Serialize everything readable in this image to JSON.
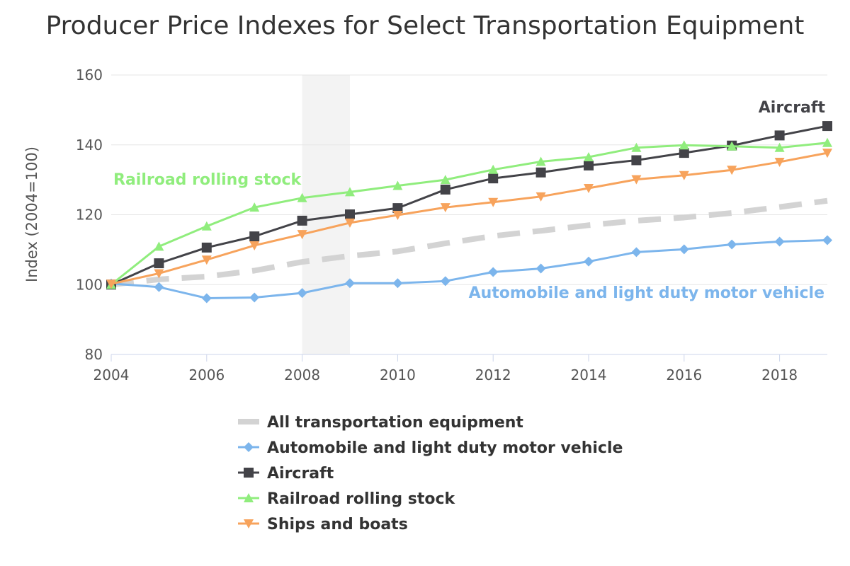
{
  "chart_data": {
    "type": "line",
    "title": "Producer Price Indexes for Select Transportation Equipment",
    "xlabel": "",
    "ylabel": "Index (2004=100)",
    "xlim": [
      2004,
      2019
    ],
    "ylim": [
      80,
      160
    ],
    "x_ticks": [
      2004,
      2006,
      2008,
      2010,
      2012,
      2014,
      2016,
      2018
    ],
    "y_ticks": [
      80,
      100,
      120,
      140,
      160
    ],
    "grid": "horizontal",
    "recession_band": [
      2008,
      2009
    ],
    "x": [
      2004,
      2005,
      2006,
      2007,
      2008,
      2009,
      2010,
      2011,
      2012,
      2013,
      2014,
      2015,
      2016,
      2017,
      2018,
      2019
    ],
    "series": [
      {
        "name": "All transportation equipment",
        "color": "#d3d3d3",
        "marker": "none",
        "dashed": true,
        "values": [
          100,
          101.5,
          102.3,
          104.0,
          106.5,
          108.2,
          109.5,
          111.8,
          113.9,
          115.4,
          117.0,
          118.3,
          119.2,
          120.5,
          122.2,
          124.0
        ]
      },
      {
        "name": "Automobile and light duty motor vehicle",
        "color": "#7cb5ec",
        "marker": "diamond",
        "dashed": false,
        "values": [
          100.3,
          99.3,
          96.1,
          96.3,
          97.6,
          100.4,
          100.4,
          101.0,
          103.6,
          104.6,
          106.6,
          109.3,
          110.1,
          111.5,
          112.3,
          112.7
        ]
      },
      {
        "name": "Aircraft",
        "color": "#434348",
        "marker": "square",
        "dashed": false,
        "values": [
          100.0,
          106.1,
          110.6,
          113.8,
          118.3,
          120.1,
          121.9,
          127.2,
          130.4,
          132.1,
          134.1,
          135.6,
          137.7,
          139.8,
          142.7,
          145.4
        ]
      },
      {
        "name": "Railroad rolling stock",
        "color": "#90ed7d",
        "marker": "triangle",
        "dashed": false,
        "values": [
          100.0,
          110.9,
          116.7,
          122.1,
          124.8,
          126.5,
          128.3,
          130.0,
          132.9,
          135.2,
          136.5,
          139.2,
          139.9,
          139.6,
          139.2,
          140.6
        ]
      },
      {
        "name": "Ships and boats",
        "color": "#f7a35c",
        "marker": "triangle-down",
        "dashed": false,
        "values": [
          100.2,
          103.2,
          107.1,
          111.2,
          114.4,
          117.7,
          119.9,
          122.1,
          123.6,
          125.2,
          127.6,
          130.1,
          131.3,
          132.8,
          135.1,
          137.7
        ]
      }
    ],
    "annotations": [
      {
        "text": "Aircraft",
        "color": "#434348",
        "series": "Aircraft"
      },
      {
        "text": "Railroad rolling stock",
        "color": "#90ed7d",
        "series": "Railroad rolling stock"
      },
      {
        "text": "Automobile and light duty motor vehicle",
        "color": "#7cb5ec",
        "series": "Automobile and light duty motor vehicle"
      }
    ],
    "legend": {
      "position": "bottom",
      "items": [
        "All transportation equipment",
        "Automobile and light duty motor vehicle",
        "Aircraft",
        "Railroad rolling stock",
        "Ships and boats"
      ]
    }
  }
}
